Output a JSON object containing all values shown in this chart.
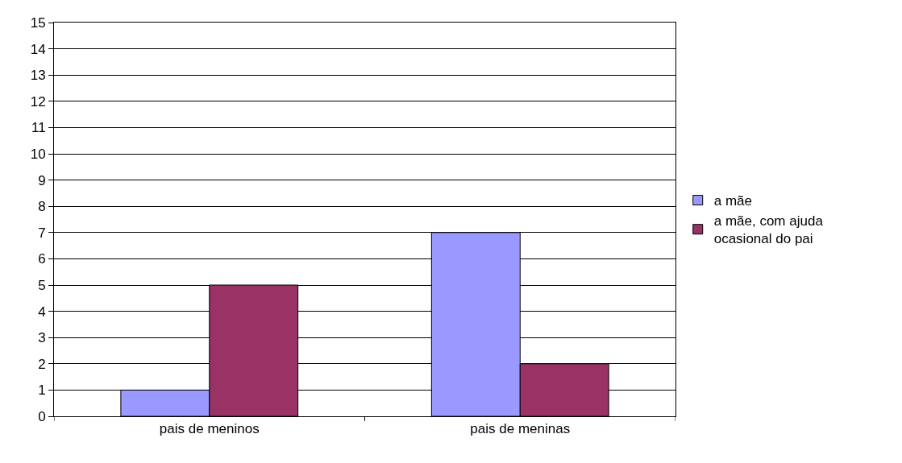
{
  "chart_data": {
    "type": "bar",
    "categories": [
      "pais de meninos",
      "pais de meninas"
    ],
    "series": [
      {
        "name": "a mãe",
        "color": "#9999ff",
        "values": [
          1,
          7
        ]
      },
      {
        "name": "a mãe, com ajuda ocasional do pai",
        "color": "#993366",
        "values": [
          5,
          2
        ]
      }
    ],
    "ylim": [
      0,
      15
    ],
    "yticks": [
      0,
      1,
      2,
      3,
      4,
      5,
      6,
      7,
      8,
      9,
      10,
      11,
      12,
      13,
      14,
      15
    ],
    "grid": "y",
    "legend": "right"
  }
}
